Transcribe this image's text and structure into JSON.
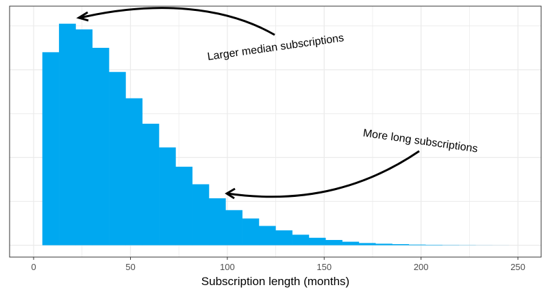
{
  "chart_data": {
    "type": "bar",
    "subtype": "histogram",
    "title": "",
    "xlabel": "Subscription length (months)",
    "ylabel": "",
    "xlim": [
      -12.4,
      262
    ],
    "ylim": [
      -0.27,
      5.45
    ],
    "x_ticks": [
      0,
      50,
      100,
      150,
      200,
      250
    ],
    "y_ticks_labeled": false,
    "grid": true,
    "bin_start": 4.5,
    "bin_width": 8.6,
    "values": [
      4.4,
      5.05,
      4.92,
      4.5,
      3.95,
      3.35,
      2.77,
      2.23,
      1.79,
      1.39,
      1.07,
      0.8,
      0.61,
      0.44,
      0.34,
      0.24,
      0.17,
      0.12,
      0.08,
      0.05,
      0.035,
      0.025,
      0.015,
      0.01,
      0.006,
      0.004,
      0.002,
      0.001
    ],
    "bar_color": "#00A8F0",
    "annotations": [
      {
        "text": "Larger median subscriptions",
        "arrow_target_x": 23
      },
      {
        "text": "More long subscriptions",
        "arrow_target_x": 99
      }
    ]
  }
}
